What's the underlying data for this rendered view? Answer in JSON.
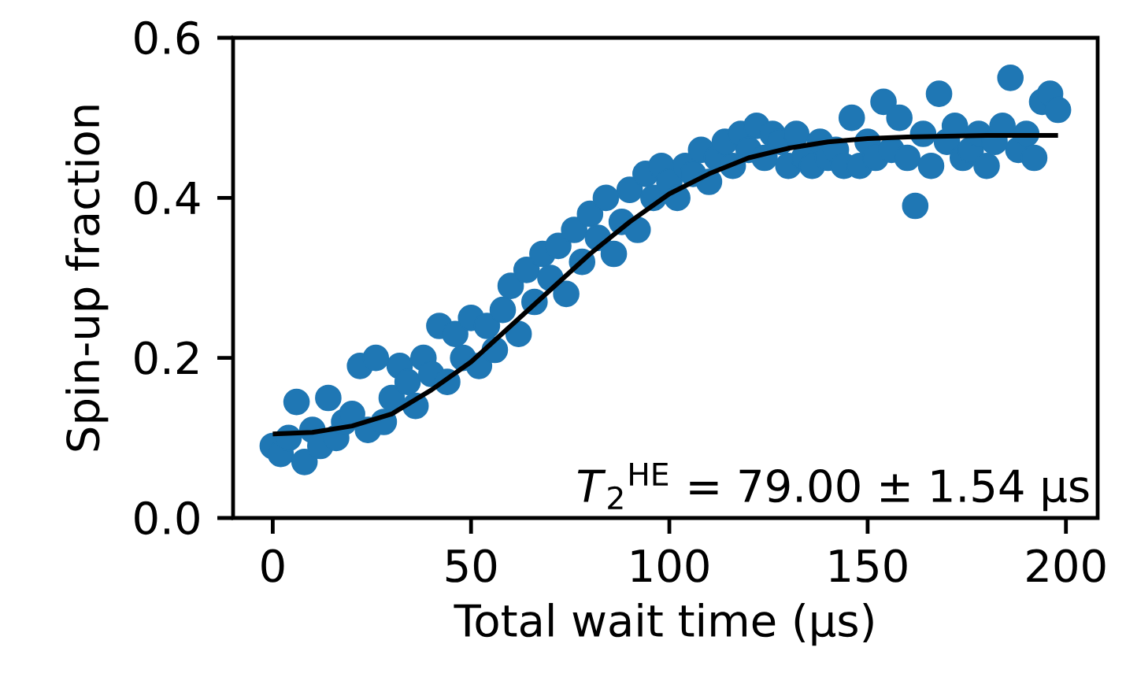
{
  "chart_data": {
    "type": "line",
    "xlabel": "Total wait time (μs)",
    "ylabel": "Spin-up fraction",
    "xlim": [
      -10,
      208
    ],
    "ylim": [
      0,
      0.6
    ],
    "xticks": [
      0,
      50,
      100,
      150,
      200
    ],
    "yticks": [
      {
        "value": 0,
        "label": "0.0"
      },
      {
        "value": 0.2,
        "label": "0.2"
      },
      {
        "value": 0.4,
        "label": "0.4"
      },
      {
        "value": 0.6,
        "label": "0.6"
      }
    ],
    "grid": false,
    "annotations": [
      "*T*$_{2}$$^{HE}$ = 79.00 ± 1.54 μs"
    ],
    "series": [
      {
        "type": "scatter",
        "marker": "circle",
        "color": "#1f77b4",
        "x": [
          0,
          2,
          4,
          6,
          8,
          10,
          12,
          14,
          16,
          18,
          20,
          22,
          24,
          26,
          28,
          30,
          32,
          34,
          36,
          38,
          40,
          42,
          44,
          46,
          48,
          50,
          52,
          54,
          56,
          58,
          60,
          62,
          64,
          66,
          68,
          70,
          72,
          74,
          76,
          78,
          80,
          82,
          84,
          86,
          88,
          90,
          92,
          94,
          96,
          98,
          100,
          102,
          104,
          106,
          108,
          110,
          112,
          114,
          116,
          118,
          120,
          122,
          124,
          126,
          128,
          130,
          132,
          134,
          136,
          138,
          140,
          142,
          144,
          146,
          148,
          150,
          152,
          154,
          156,
          158,
          160,
          162,
          164,
          166,
          168,
          170,
          172,
          174,
          176,
          178,
          180,
          182,
          184,
          186,
          188,
          190,
          192,
          194,
          196,
          198
        ],
        "values": [
          0.09,
          0.08,
          0.1,
          0.145,
          0.07,
          0.11,
          0.09,
          0.15,
          0.1,
          0.12,
          0.13,
          0.19,
          0.11,
          0.2,
          0.12,
          0.15,
          0.19,
          0.17,
          0.14,
          0.2,
          0.18,
          0.24,
          0.17,
          0.23,
          0.2,
          0.25,
          0.19,
          0.24,
          0.21,
          0.26,
          0.29,
          0.23,
          0.31,
          0.27,
          0.33,
          0.3,
          0.34,
          0.28,
          0.36,
          0.32,
          0.38,
          0.35,
          0.4,
          0.33,
          0.37,
          0.41,
          0.36,
          0.43,
          0.4,
          0.44,
          0.42,
          0.4,
          0.44,
          0.43,
          0.46,
          0.42,
          0.45,
          0.47,
          0.44,
          0.48,
          0.46,
          0.49,
          0.45,
          0.48,
          0.47,
          0.44,
          0.48,
          0.45,
          0.44,
          0.47,
          0.45,
          0.46,
          0.44,
          0.5,
          0.44,
          0.47,
          0.45,
          0.52,
          0.46,
          0.5,
          0.45,
          0.39,
          0.48,
          0.44,
          0.53,
          0.47,
          0.49,
          0.45,
          0.46,
          0.48,
          0.44,
          0.47,
          0.49,
          0.55,
          0.46,
          0.48,
          0.45,
          0.52,
          0.53,
          0.51
        ]
      },
      {
        "color": "#000000",
        "x": [
          0,
          10,
          20,
          30,
          40,
          50,
          60,
          70,
          80,
          90,
          100,
          110,
          120,
          130,
          140,
          150,
          160,
          170,
          180,
          198
        ],
        "values": [
          0.105,
          0.107,
          0.115,
          0.13,
          0.16,
          0.195,
          0.24,
          0.285,
          0.33,
          0.37,
          0.405,
          0.43,
          0.45,
          0.462,
          0.47,
          0.474,
          0.476,
          0.477,
          0.478,
          0.478
        ]
      }
    ]
  }
}
